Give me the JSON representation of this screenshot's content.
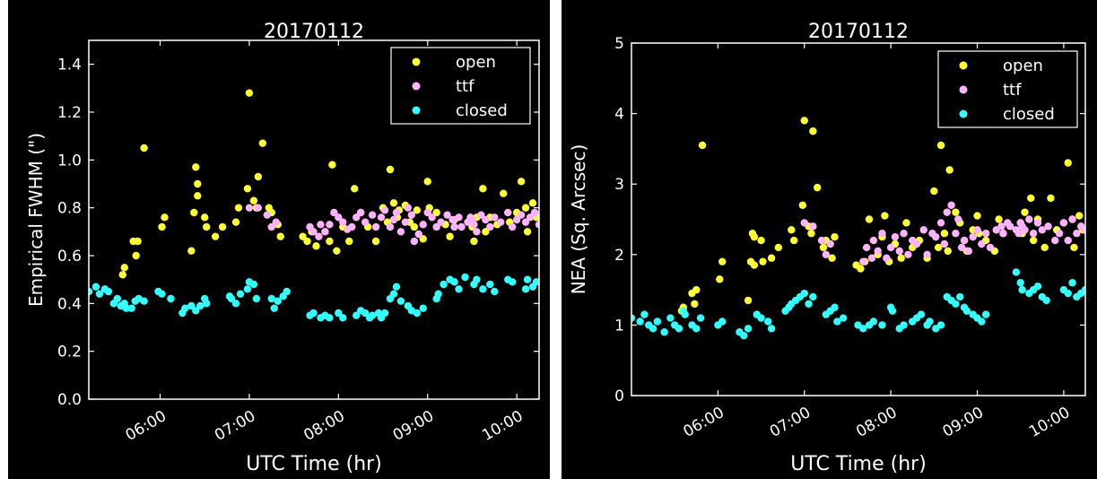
{
  "colors": {
    "open": "#ffff33",
    "ttf": "#ffb3ff",
    "closed": "#33ffff",
    "background": "#000000",
    "axis": "#ffffff"
  },
  "chart_data": [
    {
      "type": "scatter",
      "title": "20170112",
      "xlabel": "UTC Time (hr)",
      "ylabel": "Empirical FWHM (\")",
      "xlim": [
        5.2,
        10.25
      ],
      "ylim": [
        0.0,
        1.5
      ],
      "xticks": [
        6,
        7,
        8,
        9,
        10
      ],
      "xtick_labels": [
        "06:00",
        "07:00",
        "08:00",
        "09:00",
        "10:00"
      ],
      "yticks": [
        0.0,
        0.2,
        0.4,
        0.6,
        0.8,
        1.0,
        1.2,
        1.4
      ],
      "ytick_labels": [
        "0.0",
        "0.2",
        "0.4",
        "0.6",
        "0.8",
        "1.0",
        "1.2",
        "1.4"
      ],
      "legend_position": "top-right",
      "series": [
        {
          "name": "open",
          "color": "#ffff33",
          "x": [
            5.58,
            5.6,
            5.7,
            5.73,
            5.75,
            5.82,
            6.02,
            6.05,
            6.35,
            6.38,
            6.4,
            6.42,
            6.42,
            6.5,
            6.52,
            6.62,
            6.7,
            6.85,
            6.88,
            6.98,
            7.0,
            7.05,
            7.08,
            7.1,
            7.15,
            7.22,
            7.25,
            7.32,
            7.35,
            7.6,
            7.65,
            7.7,
            7.75,
            7.85,
            7.9,
            7.93,
            7.98,
            8.05,
            8.12,
            8.18,
            8.25,
            8.33,
            8.42,
            8.5,
            8.55,
            8.58,
            8.62,
            8.66,
            8.68,
            8.75,
            8.8,
            8.85,
            8.88,
            8.95,
            9.0,
            9.02,
            9.1,
            9.2,
            9.25,
            9.3,
            9.5,
            9.52,
            9.55,
            9.62,
            9.65,
            9.7,
            9.78,
            9.85,
            9.92,
            10.0,
            10.05,
            10.1,
            10.12,
            10.18,
            10.22
          ],
          "y": [
            0.52,
            0.55,
            0.66,
            0.6,
            0.66,
            1.05,
            0.72,
            0.76,
            0.62,
            0.78,
            0.97,
            0.9,
            0.85,
            0.76,
            0.72,
            0.68,
            0.72,
            0.74,
            0.8,
            0.88,
            1.28,
            0.83,
            0.8,
            0.93,
            1.07,
            0.8,
            0.78,
            0.73,
            0.68,
            0.68,
            0.66,
            0.7,
            0.64,
            0.7,
            0.66,
            0.98,
            0.62,
            0.72,
            0.66,
            0.88,
            0.78,
            0.72,
            0.66,
            0.8,
            0.74,
            0.96,
            0.82,
            0.76,
            0.79,
            0.81,
            0.74,
            0.72,
            0.79,
            0.67,
            0.91,
            0.8,
            0.78,
            0.73,
            0.68,
            0.75,
            0.72,
            0.66,
            0.76,
            0.88,
            0.7,
            0.76,
            0.73,
            0.86,
            0.74,
            0.78,
            0.91,
            0.8,
            0.7,
            0.82,
            0.76
          ]
        },
        {
          "name": "ttf",
          "color": "#ffb3ff",
          "x": [
            7.0,
            7.1,
            7.2,
            7.25,
            7.3,
            7.68,
            7.72,
            7.78,
            7.8,
            7.85,
            7.9,
            7.95,
            8.0,
            8.05,
            8.1,
            8.15,
            8.2,
            8.25,
            8.3,
            8.38,
            8.42,
            8.48,
            8.52,
            8.58,
            8.62,
            8.65,
            8.7,
            8.75,
            8.78,
            8.82,
            8.85,
            8.9,
            8.95,
            9.0,
            9.05,
            9.1,
            9.15,
            9.22,
            9.28,
            9.3,
            9.35,
            9.38,
            9.45,
            9.48,
            9.5,
            9.52,
            9.55,
            9.6,
            9.65,
            9.7,
            9.75,
            9.82,
            9.9,
            9.95,
            10.0,
            10.05,
            10.1,
            10.15,
            10.2,
            10.25
          ],
          "y": [
            0.8,
            0.8,
            0.77,
            0.72,
            0.74,
            0.72,
            0.7,
            0.68,
            0.73,
            0.7,
            0.73,
            0.78,
            0.76,
            0.74,
            0.71,
            0.72,
            0.76,
            0.78,
            0.74,
            0.77,
            0.72,
            0.76,
            0.79,
            0.72,
            0.75,
            0.78,
            0.7,
            0.74,
            0.8,
            0.77,
            0.66,
            0.69,
            0.73,
            0.78,
            0.76,
            0.72,
            0.74,
            0.77,
            0.75,
            0.72,
            0.76,
            0.72,
            0.74,
            0.76,
            0.75,
            0.73,
            0.7,
            0.77,
            0.75,
            0.72,
            0.76,
            0.74,
            0.78,
            0.72,
            0.75,
            0.77,
            0.74,
            0.76,
            0.78,
            0.73
          ]
        },
        {
          "name": "closed",
          "color": "#33ffff",
          "x": [
            5.2,
            5.28,
            5.32,
            5.38,
            5.42,
            5.48,
            5.52,
            5.56,
            5.6,
            5.62,
            5.68,
            5.72,
            5.76,
            5.82,
            5.98,
            6.02,
            6.12,
            6.25,
            6.28,
            6.35,
            6.4,
            6.45,
            6.5,
            6.52,
            6.78,
            6.8,
            6.85,
            6.9,
            6.98,
            7.0,
            7.05,
            7.08,
            7.25,
            7.28,
            7.32,
            7.38,
            7.42,
            7.68,
            7.72,
            7.8,
            7.85,
            7.9,
            8.0,
            8.05,
            8.2,
            8.25,
            8.3,
            8.35,
            8.38,
            8.45,
            8.48,
            8.52,
            8.58,
            8.62,
            8.65,
            8.7,
            8.78,
            8.82,
            8.88,
            8.95,
            9.1,
            9.12,
            9.18,
            9.25,
            9.3,
            9.35,
            9.42,
            9.52,
            9.55,
            9.62,
            9.7,
            9.75,
            9.9,
            9.95,
            10.1,
            10.12,
            10.18,
            10.22
          ],
          "y": [
            0.45,
            0.47,
            0.44,
            0.46,
            0.45,
            0.4,
            0.42,
            0.39,
            0.4,
            0.38,
            0.38,
            0.41,
            0.42,
            0.41,
            0.45,
            0.44,
            0.42,
            0.36,
            0.38,
            0.39,
            0.37,
            0.39,
            0.42,
            0.4,
            0.43,
            0.42,
            0.4,
            0.44,
            0.46,
            0.49,
            0.48,
            0.42,
            0.42,
            0.38,
            0.41,
            0.43,
            0.45,
            0.35,
            0.36,
            0.34,
            0.35,
            0.34,
            0.36,
            0.34,
            0.35,
            0.37,
            0.36,
            0.34,
            0.35,
            0.36,
            0.34,
            0.36,
            0.42,
            0.44,
            0.47,
            0.41,
            0.39,
            0.37,
            0.36,
            0.38,
            0.42,
            0.44,
            0.48,
            0.5,
            0.49,
            0.46,
            0.51,
            0.48,
            0.5,
            0.46,
            0.48,
            0.45,
            0.5,
            0.49,
            0.46,
            0.5,
            0.47,
            0.49
          ]
        }
      ]
    },
    {
      "type": "scatter",
      "title": "20170112",
      "xlabel": "UTC Time (hr)",
      "ylabel": "NEA (Sq. Arcsec)",
      "xlim": [
        5.0,
        10.25
      ],
      "ylim": [
        0,
        5
      ],
      "xticks": [
        6,
        7,
        8,
        9,
        10
      ],
      "xtick_labels": [
        "06:00",
        "07:00",
        "08:00",
        "09:00",
        "10:00"
      ],
      "yticks": [
        0,
        1,
        2,
        3,
        4,
        5
      ],
      "ytick_labels": [
        "0",
        "1",
        "2",
        "3",
        "4",
        "5"
      ],
      "legend_position": "top-right",
      "series": [
        {
          "name": "open",
          "color": "#ffff33",
          "x": [
            5.58,
            5.6,
            5.7,
            5.73,
            5.75,
            5.82,
            6.02,
            6.05,
            6.35,
            6.38,
            6.4,
            6.42,
            6.42,
            6.5,
            6.52,
            6.62,
            6.7,
            6.85,
            6.88,
            6.98,
            7.0,
            7.05,
            7.08,
            7.1,
            7.15,
            7.22,
            7.25,
            7.32,
            7.35,
            7.6,
            7.65,
            7.7,
            7.75,
            7.85,
            7.9,
            7.93,
            7.98,
            8.05,
            8.12,
            8.18,
            8.25,
            8.33,
            8.42,
            8.5,
            8.55,
            8.58,
            8.62,
            8.66,
            8.68,
            8.75,
            8.8,
            8.85,
            8.88,
            8.95,
            9.0,
            9.02,
            9.1,
            9.2,
            9.25,
            9.3,
            9.5,
            9.52,
            9.55,
            9.62,
            9.65,
            9.7,
            9.78,
            9.85,
            9.92,
            10.0,
            10.05,
            10.1,
            10.12,
            10.18,
            10.22
          ],
          "y": [
            1.2,
            1.25,
            1.45,
            1.3,
            1.5,
            3.55,
            1.65,
            1.9,
            1.35,
            1.9,
            2.3,
            2.25,
            1.85,
            2.2,
            1.9,
            1.95,
            2.1,
            2.35,
            2.2,
            2.7,
            3.9,
            2.4,
            2.3,
            3.75,
            2.95,
            2.1,
            2.2,
            1.95,
            2.25,
            1.85,
            1.8,
            1.9,
            2.5,
            2.0,
            2.25,
            2.55,
            1.9,
            2.15,
            1.95,
            2.45,
            2.1,
            2.2,
            1.95,
            2.9,
            2.1,
            3.55,
            2.3,
            2.05,
            3.2,
            2.6,
            2.45,
            2.2,
            2.05,
            2.35,
            2.55,
            2.3,
            2.2,
            2.05,
            2.5,
            2.3,
            2.45,
            2.3,
            2.6,
            2.8,
            2.2,
            2.5,
            2.1,
            2.8,
            2.35,
            2.45,
            3.3,
            2.5,
            2.1,
            2.55,
            2.35
          ]
        },
        {
          "name": "ttf",
          "color": "#ffb3ff",
          "x": [
            7.0,
            7.1,
            7.2,
            7.25,
            7.3,
            7.68,
            7.72,
            7.78,
            7.8,
            7.85,
            7.9,
            7.95,
            8.0,
            8.05,
            8.1,
            8.15,
            8.2,
            8.25,
            8.3,
            8.38,
            8.42,
            8.48,
            8.52,
            8.58,
            8.62,
            8.65,
            8.7,
            8.75,
            8.78,
            8.82,
            8.85,
            8.9,
            8.95,
            9.0,
            9.05,
            9.1,
            9.15,
            9.22,
            9.28,
            9.3,
            9.35,
            9.38,
            9.45,
            9.48,
            9.5,
            9.52,
            9.55,
            9.6,
            9.65,
            9.7,
            9.75,
            9.82,
            9.9,
            9.95,
            10.0,
            10.05,
            10.1,
            10.15,
            10.2,
            10.25
          ],
          "y": [
            2.45,
            2.4,
            2.2,
            2.0,
            2.15,
            1.9,
            2.1,
            1.95,
            2.2,
            2.05,
            2.3,
            1.95,
            2.1,
            2.25,
            2.05,
            2.3,
            2.0,
            2.2,
            2.15,
            2.35,
            2.0,
            2.3,
            2.25,
            2.45,
            2.15,
            2.6,
            2.7,
            2.3,
            2.5,
            2.1,
            2.2,
            2.05,
            2.25,
            2.35,
            2.15,
            2.3,
            2.1,
            2.35,
            2.4,
            2.3,
            2.45,
            2.4,
            2.35,
            2.3,
            2.45,
            2.4,
            2.35,
            2.5,
            2.3,
            2.45,
            2.35,
            2.4,
            2.2,
            2.3,
            2.45,
            2.2,
            2.5,
            2.3,
            2.4,
            2.35
          ]
        },
        {
          "name": "closed",
          "color": "#33ffff",
          "x": [
            5.0,
            5.1,
            5.15,
            5.2,
            5.25,
            5.3,
            5.38,
            5.45,
            5.5,
            5.55,
            5.6,
            5.62,
            5.7,
            5.75,
            5.8,
            6.0,
            6.05,
            6.25,
            6.3,
            6.35,
            6.45,
            6.5,
            6.58,
            6.62,
            6.78,
            6.82,
            6.85,
            6.9,
            6.95,
            7.0,
            7.05,
            7.1,
            7.25,
            7.3,
            7.35,
            7.38,
            7.45,
            7.62,
            7.68,
            7.75,
            7.8,
            7.9,
            8.0,
            8.02,
            8.1,
            8.15,
            8.25,
            8.3,
            8.35,
            8.42,
            8.45,
            8.52,
            8.58,
            8.65,
            8.7,
            8.75,
            8.8,
            8.85,
            8.88,
            8.95,
            9.0,
            9.05,
            9.1,
            9.45,
            9.5,
            9.52,
            9.6,
            9.65,
            9.7,
            9.75,
            9.8,
            10.0,
            10.05,
            10.1,
            10.15,
            10.2,
            10.25
          ],
          "y": [
            1.1,
            1.05,
            1.15,
            1.0,
            0.95,
            1.05,
            0.9,
            1.1,
            1.0,
            0.95,
            1.2,
            1.15,
            1.0,
            0.95,
            1.1,
            1.0,
            1.05,
            0.9,
            0.85,
            0.95,
            1.15,
            1.1,
            1.05,
            0.95,
            1.2,
            1.25,
            1.3,
            1.35,
            1.4,
            1.45,
            1.3,
            1.4,
            1.15,
            1.2,
            1.25,
            1.05,
            1.1,
            1.0,
            0.95,
            1.0,
            1.05,
            1.0,
            1.25,
            1.2,
            0.95,
            1.0,
            1.05,
            1.1,
            1.15,
            1.0,
            1.05,
            0.95,
            1.0,
            1.4,
            1.35,
            1.3,
            1.4,
            1.25,
            1.2,
            1.15,
            1.1,
            1.05,
            1.15,
            1.75,
            1.6,
            1.5,
            1.45,
            1.5,
            1.55,
            1.4,
            1.35,
            1.5,
            1.45,
            1.6,
            1.4,
            1.45,
            1.5
          ]
        }
      ]
    }
  ]
}
